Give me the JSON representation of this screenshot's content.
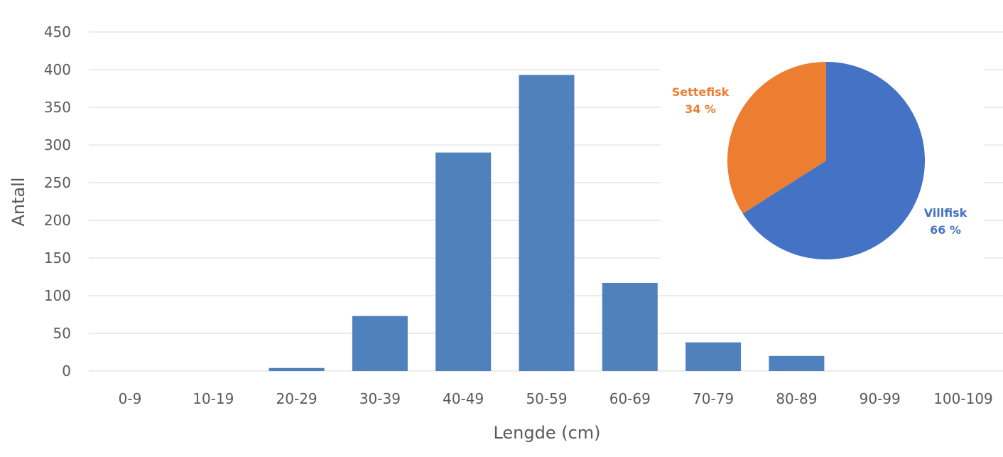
{
  "chart_data": [
    {
      "type": "bar",
      "title": "",
      "xlabel": "Lengde (cm)",
      "ylabel": "Antall",
      "categories": [
        "0-9",
        "10-19",
        "20-29",
        "30-39",
        "40-49",
        "50-59",
        "60-69",
        "70-79",
        "80-89",
        "90-99",
        "100-109"
      ],
      "values": [
        0,
        0,
        4,
        73,
        290,
        393,
        117,
        38,
        20,
        0,
        0
      ],
      "ylim": [
        0,
        450
      ],
      "yticks": [
        0,
        50,
        100,
        150,
        200,
        250,
        300,
        350,
        400,
        450
      ],
      "grid": true,
      "color": "#4f81bd"
    },
    {
      "type": "pie",
      "slices": [
        {
          "label": "Villfisk",
          "value_label": "66 %",
          "value": 66,
          "color": "#4472c4"
        },
        {
          "label": "Settefisk",
          "value_label": "34 %",
          "value": 34,
          "color": "#ed7d31"
        }
      ]
    }
  ]
}
